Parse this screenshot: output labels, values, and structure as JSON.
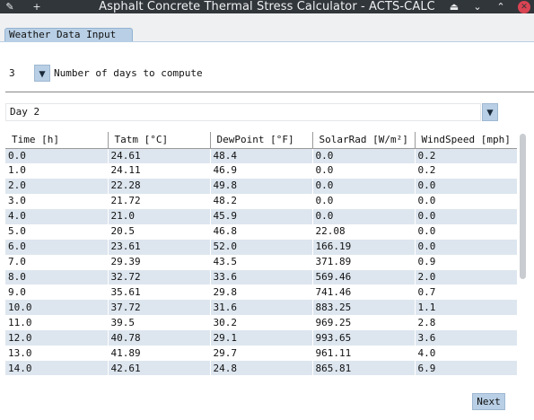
{
  "window": {
    "title": "Asphalt Concrete Thermal Stress Calculator - ACTS-CALC",
    "pin_icon": "pin-icon",
    "plus_icon": "plus-icon",
    "keep_above_icon": "keep-above-icon",
    "minimize_icon": "minimize-icon",
    "maximize_icon": "maximize-icon",
    "close_icon": "close-icon",
    "pin_glyph": "✎",
    "plus_glyph": "+",
    "keep_above_glyph": "⏏",
    "minimize_glyph": "⌄",
    "maximize_glyph": "⌃",
    "close_glyph": "✕"
  },
  "tabs": [
    {
      "label": "Weather Data Input",
      "active": true
    }
  ],
  "days_to_compute": {
    "value": "3",
    "arrow_glyph": "▼",
    "label": "Number of days to compute"
  },
  "day_select": {
    "value": "Day 2",
    "arrow_glyph": "▼"
  },
  "table": {
    "headers": [
      "Time [h]",
      "Tatm [°C]",
      "DewPoint [°F]",
      "SolarRad [W/m²]",
      "WindSpeed [mph]"
    ],
    "rows": [
      [
        "0.0",
        "24.61",
        "48.4",
        "0.0",
        "0.2"
      ],
      [
        "1.0",
        "24.11",
        "46.9",
        "0.0",
        "0.2"
      ],
      [
        "2.0",
        "22.28",
        "49.8",
        "0.0",
        "0.0"
      ],
      [
        "3.0",
        "21.72",
        "48.2",
        "0.0",
        "0.0"
      ],
      [
        "4.0",
        "21.0",
        "45.9",
        "0.0",
        "0.0"
      ],
      [
        "5.0",
        "20.5",
        "46.8",
        "22.08",
        "0.0"
      ],
      [
        "6.0",
        "23.61",
        "52.0",
        "166.19",
        "0.0"
      ],
      [
        "7.0",
        "29.39",
        "43.5",
        "371.89",
        "0.9"
      ],
      [
        "8.0",
        "32.72",
        "33.6",
        "569.46",
        "2.0"
      ],
      [
        "9.0",
        "35.61",
        "29.8",
        "741.46",
        "0.7"
      ],
      [
        "10.0",
        "37.72",
        "31.6",
        "883.25",
        "1.1"
      ],
      [
        "11.0",
        "39.5",
        "30.2",
        "969.25",
        "2.8"
      ],
      [
        "12.0",
        "40.78",
        "29.1",
        "993.65",
        "3.6"
      ],
      [
        "13.0",
        "41.89",
        "29.7",
        "961.11",
        "4.0"
      ],
      [
        "14.0",
        "42.61",
        "24.8",
        "865.81",
        "6.9"
      ]
    ]
  },
  "buttons": {
    "next_label": "Next"
  },
  "colors": {
    "accent": "#b8cfe5",
    "row_alt": "#dde6ef",
    "titlebar": "#31363b",
    "close": "#da4453"
  }
}
